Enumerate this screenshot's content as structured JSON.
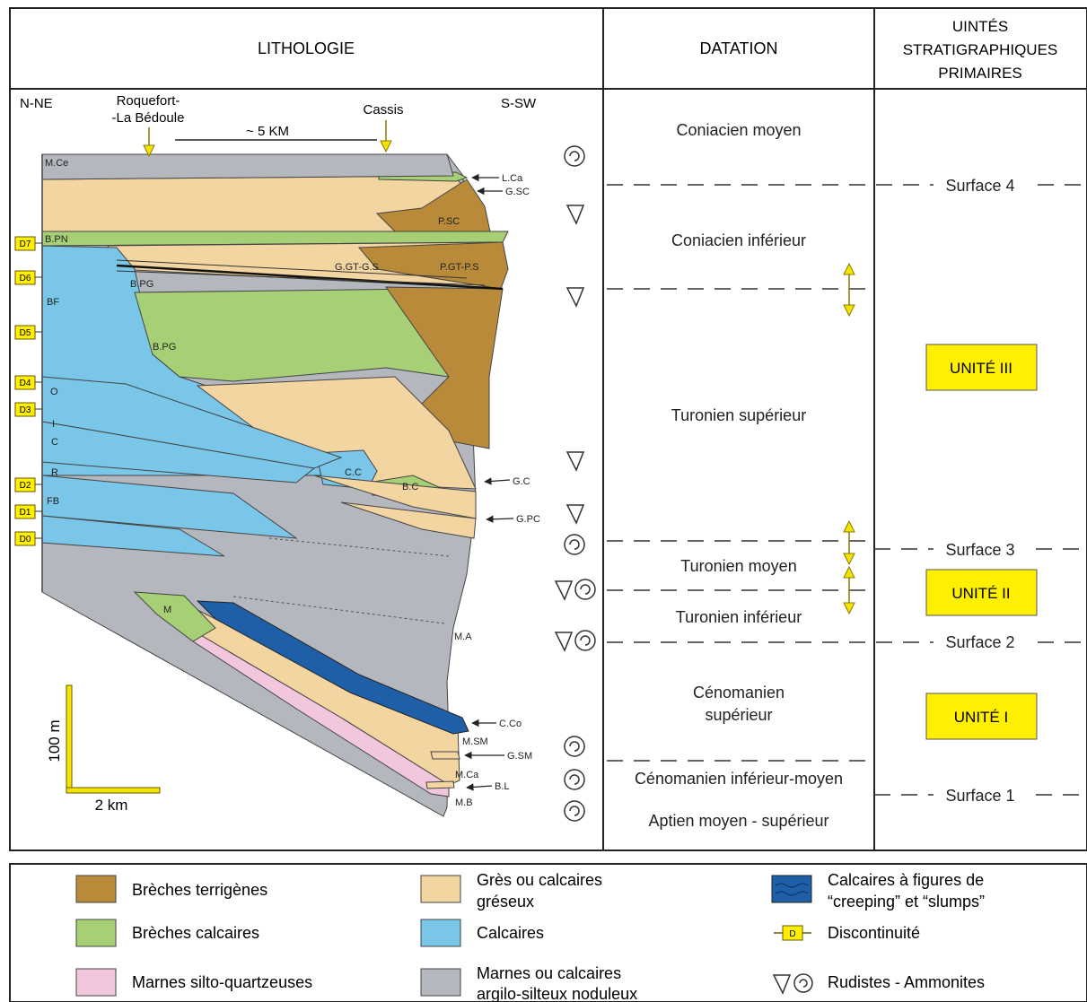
{
  "headers": {
    "lithologie": "LITHOLOGIE",
    "datation": "DATATION",
    "unites": [
      "UINTÉS",
      "STRATIGRAPHIQUES",
      "PRIMAIRES"
    ]
  },
  "section": {
    "left_direction": "N-NE",
    "right_direction": "S-SW",
    "location_1": [
      "Roquefort-",
      "-La Bédoule"
    ],
    "location_2": "Cassis",
    "distance": "~ 5 KM",
    "scale_vertical": "100 m",
    "scale_horizontal": "2 km"
  },
  "discontinuities": [
    "D7",
    "D6",
    "D5",
    "D4",
    "D3",
    "D2",
    "D1",
    "D0"
  ],
  "unit_labels": {
    "M.Ce": "M.Ce",
    "B.PN": "B.PN",
    "BF": "BF",
    "B.PG_1": "B.PG",
    "B.PG_2": "B.PG",
    "O": "O",
    "I": "I",
    "C": "C",
    "R": "R",
    "FB": "FB",
    "P.SC": "P.SC",
    "G.GT-G.S": "G.GT-G.S",
    "P.GT-P.S": "P.GT-P.S",
    "C.C": "C.C",
    "B.C": "B.C",
    "M": "M",
    "M.A": "M.A",
    "M.SM": "M.SM",
    "M.Ca": "M.Ca",
    "M.B": "M.B"
  },
  "arrow_labels": {
    "L.Ca": "L.Ca",
    "G.SC": "G.SC",
    "G.C": "G.C",
    "G.PC": "G.PC",
    "C.Co": "C.Co",
    "G.SM": "G.SM",
    "B.L": "B.L"
  },
  "stages": {
    "coniacien_moyen": "Coniacien moyen",
    "coniacien_inferieur": "Coniacien inférieur",
    "turonien_superieur": "Turonien supérieur",
    "turonien_moyen": "Turonien moyen",
    "turonien_inferieur": "Turonien inférieur",
    "cenomanien_superieur": [
      "Cénomanien",
      "supérieur"
    ],
    "cenomanien_inf_moy": "Cénomanien inférieur-moyen",
    "aptien": "Aptien moyen - supérieur"
  },
  "surfaces": {
    "s4": "Surface 4",
    "s3": "Surface 3",
    "s2": "Surface 2",
    "s1": "Surface 1"
  },
  "units": {
    "u3": "UNITÉ III",
    "u2": "UNITÉ II",
    "u1": "UNITÉ I"
  },
  "legend": {
    "breches_terrigenes": "Brèches terrigènes",
    "breches_calcaires": "Brèches calcaires",
    "marnes_silto": "Marnes silto-quartzeuses",
    "gres": [
      "Grès ou calcaires",
      "gréseux"
    ],
    "calcaires": "Calcaires",
    "marnes_calc": [
      "Marnes ou calcaires",
      "argilo-silteux noduleux"
    ],
    "creeping": [
      "Calcaires à figures de",
      "“creeping” et “slumps”"
    ],
    "discontinuite": "Discontinuité",
    "discontinuite_symbol": "D",
    "rudistes": "Rudistes - Ammonites"
  },
  "colors": {
    "breches_terrigenes": "#b98a3a",
    "breches_calcaires": "#a6cf76",
    "marnes_silto": "#f2c6dc",
    "gres": "#f3d5a2",
    "calcaires": "#79c6e8",
    "marnes_calc": "#b4b7bd",
    "creeping": "#1f5fa8",
    "discontinuity": "#ffef00",
    "yellow_arrow": "#f5e400"
  }
}
